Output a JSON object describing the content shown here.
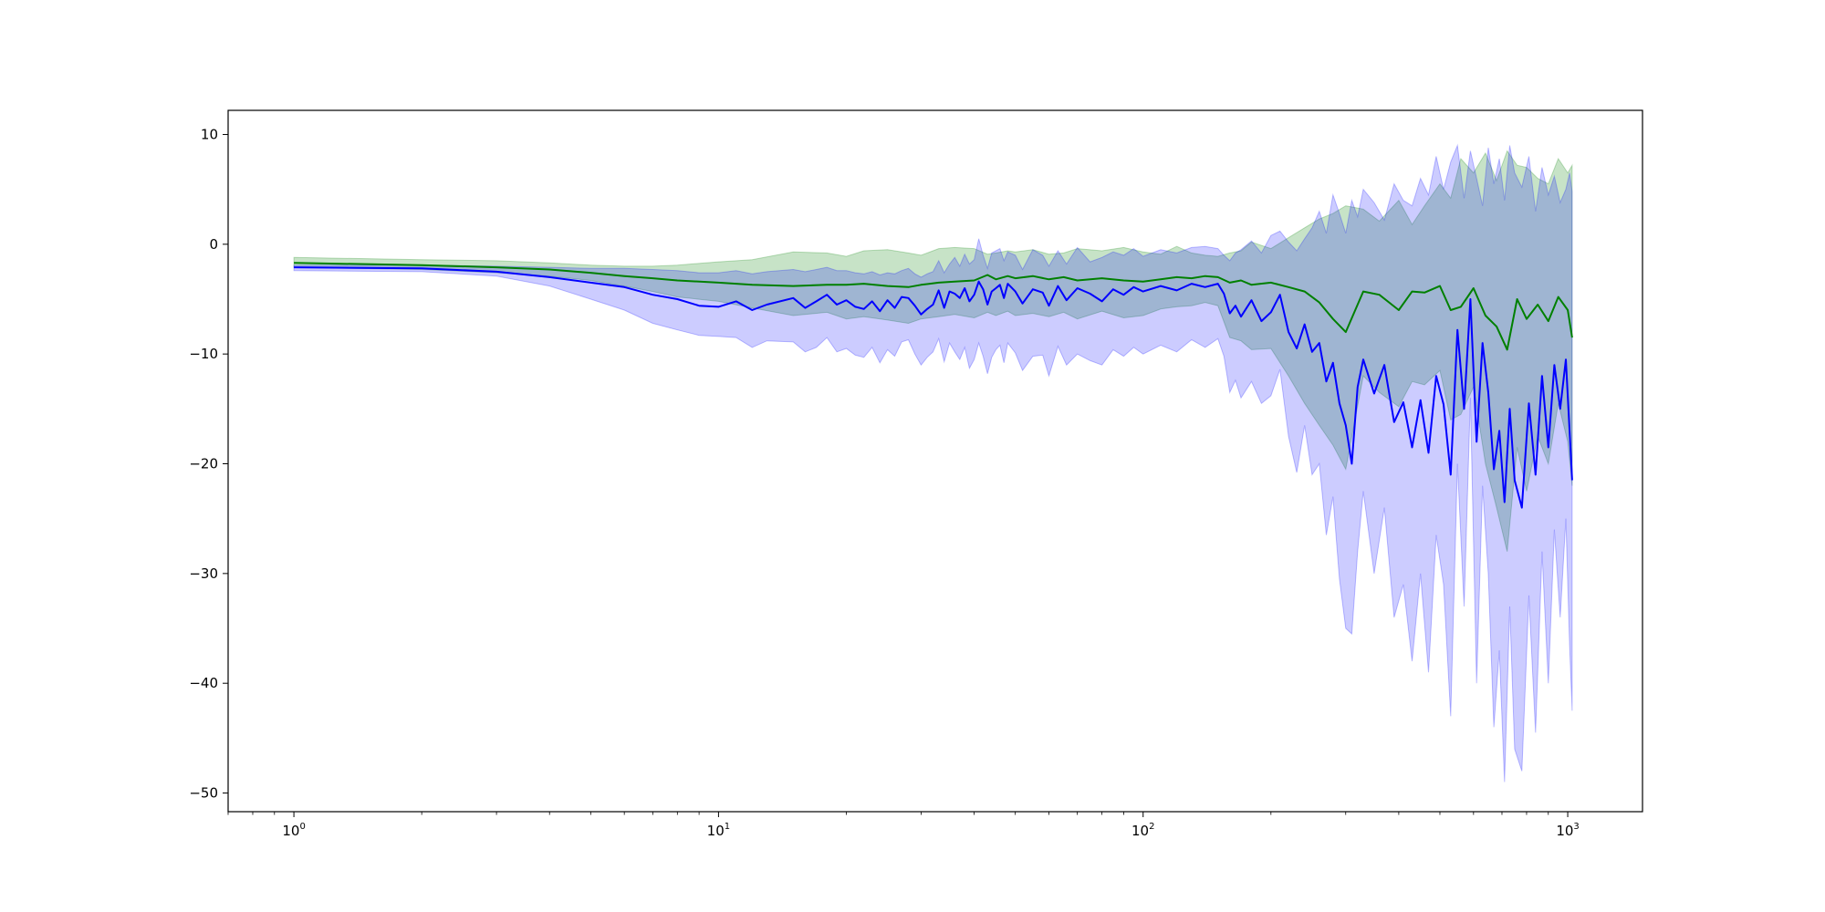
{
  "chart_data": {
    "type": "line",
    "xscale": "log",
    "xlim": [
      0.7,
      1500
    ],
    "ylim": [
      -51.7,
      12.2
    ],
    "grid": false,
    "x_ticks": [
      {
        "value": 1,
        "base": "10",
        "exp": "0"
      },
      {
        "value": 10,
        "base": "10",
        "exp": "1"
      },
      {
        "value": 100,
        "base": "10",
        "exp": "2"
      },
      {
        "value": 1000,
        "base": "10",
        "exp": "3"
      }
    ],
    "y_ticks": [
      {
        "value": 10,
        "label": "10"
      },
      {
        "value": 0,
        "label": "0"
      },
      {
        "value": -10,
        "label": "−10"
      },
      {
        "value": -20,
        "label": "−20"
      },
      {
        "value": -30,
        "label": "−30"
      },
      {
        "value": -40,
        "label": "−40"
      },
      {
        "value": -50,
        "label": "−50"
      }
    ],
    "series": [
      {
        "color": "#008000",
        "band_color": "#008000",
        "band_opacity": 0.22,
        "x": [
          1,
          2,
          3,
          4,
          5,
          6,
          7,
          8,
          10,
          12,
          15,
          18,
          20,
          22,
          25,
          28,
          30,
          33,
          36,
          40,
          43,
          45,
          48,
          50,
          55,
          60,
          65,
          70,
          80,
          90,
          100,
          110,
          120,
          130,
          140,
          150,
          160,
          170,
          180,
          200,
          220,
          240,
          260,
          280,
          300,
          330,
          360,
          400,
          430,
          460,
          500,
          530,
          560,
          600,
          640,
          680,
          720,
          760,
          800,
          850,
          900,
          950,
          1000,
          1024
        ],
        "mean": [
          -1.7,
          -1.9,
          -2.1,
          -2.3,
          -2.6,
          -2.9,
          -3.1,
          -3.3,
          -3.5,
          -3.7,
          -3.8,
          -3.7,
          -3.7,
          -3.6,
          -3.8,
          -3.9,
          -3.7,
          -3.5,
          -3.4,
          -3.3,
          -2.8,
          -3.2,
          -2.9,
          -3.1,
          -2.9,
          -3.2,
          -3.0,
          -3.3,
          -3.1,
          -3.3,
          -3.4,
          -3.2,
          -3.0,
          -3.1,
          -2.9,
          -3.0,
          -3.5,
          -3.3,
          -3.7,
          -3.5,
          -3.9,
          -4.3,
          -5.3,
          -6.8,
          -8.0,
          -4.3,
          -4.6,
          -6.0,
          -4.3,
          -4.4,
          -3.8,
          -6.0,
          -5.7,
          -4.0,
          -6.5,
          -7.5,
          -9.6,
          -5.0,
          -6.8,
          -5.5,
          -7.0,
          -4.8,
          -6.0,
          -8.5
        ],
        "upper": [
          -1.2,
          -1.4,
          -1.5,
          -1.7,
          -1.9,
          -2.0,
          -2.0,
          -1.9,
          -1.6,
          -1.4,
          -0.7,
          -0.8,
          -1.1,
          -0.6,
          -0.5,
          -0.8,
          -1.0,
          -0.4,
          -0.3,
          -0.4,
          -0.9,
          -0.8,
          -0.6,
          -0.7,
          -0.5,
          -0.9,
          -0.8,
          -0.4,
          -0.6,
          -0.3,
          -0.7,
          -0.9,
          -0.2,
          -0.8,
          -1.0,
          -1.1,
          -0.8,
          -0.6,
          0.2,
          -0.4,
          0.6,
          1.5,
          2.3,
          2.8,
          3.5,
          3.2,
          2.1,
          4.0,
          1.8,
          3.5,
          5.5,
          4.2,
          7.8,
          6.5,
          8.3,
          5.8,
          8.5,
          7.2,
          7.0,
          6.0,
          5.5,
          7.8,
          6.5,
          7.2
        ],
        "lower": [
          -2.1,
          -2.3,
          -2.6,
          -2.9,
          -3.3,
          -3.8,
          -4.3,
          -4.8,
          -5.2,
          -5.8,
          -6.5,
          -6.2,
          -6.8,
          -6.6,
          -6.9,
          -7.2,
          -6.8,
          -6.6,
          -6.4,
          -6.7,
          -6.2,
          -6.5,
          -6.1,
          -6.5,
          -6.3,
          -6.6,
          -6.2,
          -6.8,
          -6.1,
          -6.7,
          -6.5,
          -5.9,
          -5.7,
          -5.6,
          -5.3,
          -5.6,
          -8.5,
          -8.8,
          -9.6,
          -9.5,
          -12.0,
          -14.5,
          -16.5,
          -18.3,
          -20.5,
          -12.0,
          -13.5,
          -14.8,
          -12.5,
          -12.8,
          -11.5,
          -16.0,
          -15.5,
          -13.0,
          -20.0,
          -24.0,
          -28.0,
          -18.5,
          -22.5,
          -17.5,
          -20.0,
          -14.5,
          -18.0,
          -22.0
        ]
      },
      {
        "color": "#0000ff",
        "band_color": "#0000ff",
        "band_opacity": 0.2,
        "x": [
          1,
          2,
          3,
          4,
          5,
          6,
          7,
          8,
          9,
          10,
          11,
          12,
          13,
          15,
          16,
          17,
          18,
          19,
          20,
          21,
          22,
          23,
          24,
          25,
          26,
          27,
          28,
          29,
          30,
          31,
          32,
          33,
          34,
          35,
          36,
          37,
          38,
          39,
          40,
          41,
          42,
          43,
          44,
          45,
          46,
          47,
          48,
          50,
          52,
          55,
          58,
          60,
          63,
          66,
          70,
          75,
          80,
          85,
          90,
          95,
          100,
          110,
          120,
          130,
          140,
          150,
          155,
          160,
          165,
          170,
          180,
          190,
          200,
          210,
          220,
          230,
          240,
          250,
          260,
          270,
          280,
          290,
          300,
          310,
          320,
          330,
          350,
          370,
          390,
          410,
          430,
          450,
          470,
          490,
          510,
          530,
          550,
          570,
          590,
          610,
          630,
          650,
          670,
          690,
          710,
          730,
          750,
          780,
          810,
          840,
          870,
          900,
          930,
          960,
          990,
          1010,
          1024
        ],
        "mean": [
          -2.1,
          -2.2,
          -2.5,
          -3.0,
          -3.5,
          -3.9,
          -4.6,
          -5.0,
          -5.6,
          -5.7,
          -5.2,
          -6.0,
          -5.5,
          -4.9,
          -5.8,
          -5.2,
          -4.6,
          -5.5,
          -5.1,
          -5.7,
          -5.9,
          -5.2,
          -6.1,
          -5.1,
          -5.8,
          -4.8,
          -4.9,
          -5.6,
          -6.4,
          -5.9,
          -5.5,
          -4.2,
          -5.8,
          -4.3,
          -4.5,
          -4.9,
          -4.0,
          -5.2,
          -4.6,
          -3.4,
          -4.1,
          -5.5,
          -4.3,
          -4.0,
          -3.7,
          -4.9,
          -3.6,
          -4.3,
          -5.4,
          -4.1,
          -4.4,
          -5.6,
          -3.8,
          -5.1,
          -4.0,
          -4.5,
          -5.2,
          -4.1,
          -4.6,
          -3.9,
          -4.3,
          -3.8,
          -4.2,
          -3.6,
          -3.9,
          -3.6,
          -4.5,
          -6.3,
          -5.6,
          -6.6,
          -5.1,
          -7.0,
          -6.2,
          -4.6,
          -8.0,
          -9.5,
          -7.3,
          -9.8,
          -9.0,
          -12.5,
          -10.8,
          -14.5,
          -16.5,
          -20.0,
          -13.0,
          -10.5,
          -13.6,
          -11.0,
          -16.2,
          -14.4,
          -18.5,
          -14.2,
          -19.0,
          -12.0,
          -14.6,
          -21.0,
          -7.8,
          -15.0,
          -5.0,
          -18.0,
          -9.0,
          -13.5,
          -20.5,
          -17.0,
          -23.5,
          -15.0,
          -21.5,
          -24.0,
          -14.5,
          -21.0,
          -12.0,
          -18.5,
          -11.0,
          -15.0,
          -10.5,
          -17.0,
          -21.5
        ],
        "upper": [
          -1.9,
          -1.9,
          -2.0,
          -2.1,
          -2.2,
          -2.2,
          -2.3,
          -2.4,
          -2.6,
          -2.6,
          -2.4,
          -2.7,
          -2.5,
          -2.3,
          -2.5,
          -2.3,
          -2.1,
          -2.4,
          -2.4,
          -2.6,
          -2.7,
          -2.5,
          -2.8,
          -2.6,
          -2.7,
          -2.4,
          -2.2,
          -2.7,
          -3.0,
          -2.7,
          -2.5,
          -1.5,
          -2.6,
          -1.8,
          -1.2,
          -2.0,
          -0.9,
          -1.8,
          -1.4,
          0.5,
          -1.0,
          -2.2,
          -0.8,
          -0.6,
          -0.4,
          -1.5,
          -0.7,
          -1.0,
          -2.3,
          -0.5,
          -1.0,
          -2.0,
          -0.6,
          -1.8,
          -0.3,
          -1.6,
          -1.2,
          -0.7,
          -1.0,
          -0.4,
          -1.1,
          -0.5,
          -0.8,
          -0.3,
          -0.2,
          -0.4,
          -1.0,
          -1.5,
          -0.8,
          -0.5,
          0.3,
          -0.8,
          0.8,
          1.2,
          0.2,
          -0.6,
          0.5,
          1.5,
          3.0,
          1.0,
          4.5,
          2.8,
          1.0,
          4.0,
          2.5,
          5.0,
          3.8,
          2.2,
          5.5,
          4.0,
          3.5,
          6.0,
          4.5,
          8.0,
          5.0,
          7.5,
          9.0,
          4.2,
          8.5,
          6.0,
          3.5,
          8.8,
          5.5,
          7.8,
          4.0,
          9.0,
          6.5,
          5.2,
          8.0,
          3.0,
          7.0,
          4.5,
          6.2,
          3.8,
          5.0,
          6.5,
          4.8
        ],
        "lower": [
          -2.4,
          -2.5,
          -2.9,
          -3.8,
          -5.0,
          -6.0,
          -7.2,
          -7.8,
          -8.3,
          -8.4,
          -8.5,
          -9.4,
          -8.8,
          -8.9,
          -9.8,
          -9.4,
          -8.5,
          -9.8,
          -9.5,
          -10.1,
          -10.3,
          -9.4,
          -10.8,
          -9.6,
          -10.2,
          -8.9,
          -8.7,
          -10.0,
          -11.0,
          -10.3,
          -9.8,
          -8.6,
          -10.7,
          -9.0,
          -9.8,
          -10.5,
          -9.4,
          -11.3,
          -10.5,
          -9.0,
          -10.2,
          -11.8,
          -10.3,
          -9.6,
          -9.2,
          -10.8,
          -9.0,
          -9.9,
          -11.5,
          -10.2,
          -10.1,
          -12.0,
          -9.3,
          -11.0,
          -10.0,
          -10.6,
          -11.0,
          -9.6,
          -10.2,
          -9.4,
          -10.0,
          -9.2,
          -9.8,
          -8.7,
          -9.4,
          -8.6,
          -10.2,
          -13.5,
          -12.4,
          -14.0,
          -12.5,
          -14.5,
          -13.8,
          -11.4,
          -17.5,
          -20.8,
          -16.5,
          -21.0,
          -20.0,
          -26.5,
          -23.0,
          -30.5,
          -35.0,
          -35.5,
          -28.0,
          -22.5,
          -30.0,
          -24.0,
          -34.0,
          -31.0,
          -38.0,
          -30.0,
          -39.0,
          -26.5,
          -31.0,
          -43.0,
          -20.0,
          -33.0,
          -14.0,
          -40.0,
          -22.0,
          -30.0,
          -44.0,
          -37.0,
          -49.0,
          -33.0,
          -46.0,
          -48.0,
          -32.0,
          -44.5,
          -28.0,
          -40.0,
          -26.0,
          -34.0,
          -25.0,
          -36.5,
          -42.5
        ]
      }
    ]
  }
}
